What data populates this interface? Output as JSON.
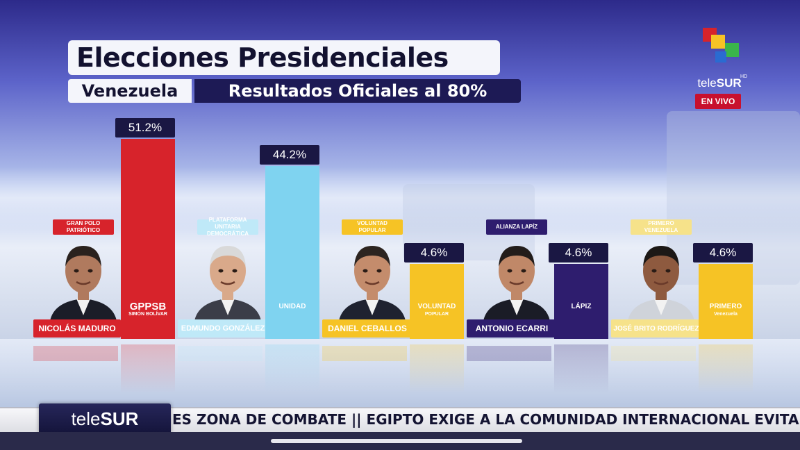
{
  "header": {
    "title": "Elecciones Presidenciales",
    "country": "Venezuela",
    "subtitle": "Resultados Oficiales al 80%"
  },
  "channel": {
    "name_prefix": "tele",
    "name_suffix": "SUR",
    "hd": "HD",
    "live_label": "EN VIVO"
  },
  "chart_data": {
    "type": "bar",
    "categories": [
      "NICOLÁS MADURO",
      "EDMUNDO GONZÁLEZ",
      "DANIEL CEBALLOS",
      "ANTONIO ECARRI",
      "JOSÉ BRITO RODRÍGUEZ"
    ],
    "values": [
      51.2,
      44.2,
      4.6,
      4.6,
      4.6
    ],
    "value_labels": [
      "51.2%",
      "44.2%",
      "4.6%",
      "4.6%",
      "4.6%"
    ],
    "title": "Elecciones Presidenciales",
    "subtitle": "Resultados Oficiales al 80%",
    "ylim": [
      0,
      55
    ],
    "grid": false,
    "legend": "none"
  },
  "candidates": [
    {
      "name": "NICOLÁS MADURO",
      "party": "GRAN POLO PATRIÓTICO",
      "pct_label": "51.2%",
      "bar_logo": "GPPSB",
      "bar_logo_sub": "SIMÓN BOLÍVAR",
      "color": "#d7232b",
      "tag_bg": "#d7232b",
      "tag_fg": "#ffffff"
    },
    {
      "name": "EDMUNDO GONZÁLEZ",
      "party": "PLATAFORMA UNITARIA DEMOCRÁTICA",
      "pct_label": "44.2%",
      "bar_logo": "UNIDAD",
      "bar_logo_sub": "",
      "color": "#7fd3f0",
      "tag_bg": "#bfe9f8",
      "tag_fg": "#ffffff"
    },
    {
      "name": "DANIEL CEBALLOS",
      "party": "VOLUNTAD POPULAR",
      "pct_label": "4.6%",
      "bar_logo": "VOLUNTAD",
      "bar_logo_sub": "POPULAR",
      "color": "#f6c325",
      "tag_bg": "#f6c325",
      "tag_fg": "#ffffff"
    },
    {
      "name": "ANTONIO ECARRI",
      "party": "ALIANZA LAPÍZ",
      "pct_label": "4.6%",
      "bar_logo": "LÁPIZ",
      "bar_logo_sub": "",
      "color": "#2e1d6e",
      "tag_bg": "#2e1d6e",
      "tag_fg": "#ffffff"
    },
    {
      "name": "JOSÉ BRITO RODRÍGUEZ",
      "party": "PRIMERO VENEZUELA",
      "pct_label": "4.6%",
      "bar_logo": "PRIMERO",
      "bar_logo_sub": "Venezuela",
      "color": "#f6c325",
      "tag_bg": "#f6e28a",
      "tag_fg": "#ffffff"
    }
  ],
  "ticker": {
    "logo_prefix": "tele",
    "logo_suffix": "SUR",
    "text": "ES ZONA DE COMBATE  ||  EGIPTO EXIGE A LA COMUNIDAD INTERNACIONAL EVITAR"
  }
}
